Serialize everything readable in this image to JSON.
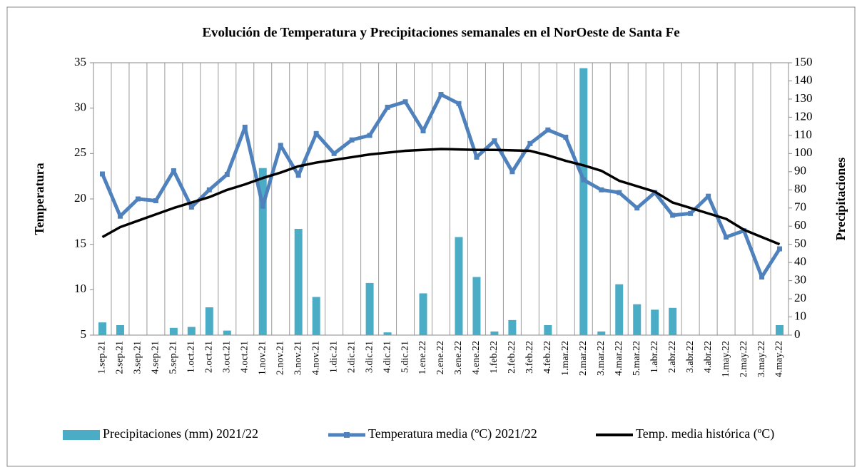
{
  "chart_data": {
    "type": "combo",
    "title": "Evolución de Temperatura y Precipitaciones semanales en el NorOeste de Santa Fe",
    "ylabel": "Temperatura",
    "y2label": "Precipitaciones",
    "categories": [
      "1.sep.21",
      "2.sep.21",
      "3.sep.21",
      "4.sep.21",
      "5.sep.21",
      "1.oct.21",
      "2.oct.21",
      "3.oct.21",
      "4.oct.21",
      "1.nov.21",
      "2.nov.21",
      "3.nov.21",
      "4.nov.21",
      "1.dic.21",
      "2.dic.21",
      "3.dic.21",
      "4.dic.21",
      "5.dic.21",
      "1.ene.22",
      "2.ene.22",
      "3.ene.22",
      "4.ene.22",
      "1.feb.22",
      "2.feb.22",
      "3.feb.22",
      "4.feb.22",
      "1.mar.22",
      "2.mar.22",
      "3.mar.22",
      "4.mar.22",
      "5.mar.22",
      "1.abr.22",
      "2.abr.22",
      "3.abr.22",
      "4.abr.22",
      "1.may.22",
      "2.may.22",
      "3.may.22",
      "4.may.22"
    ],
    "series": [
      {
        "name": "Precipitaciones (mm) 2021/22",
        "type": "bar",
        "axis": "y2",
        "color": "#4bacc6",
        "values": [
          7,
          5.5,
          0,
          0,
          4,
          4.5,
          15.3,
          2.5,
          0,
          92,
          0,
          58.5,
          21,
          0,
          0,
          28.7,
          1.5,
          0,
          23,
          0,
          54,
          32,
          2,
          8.3,
          0,
          5.5,
          0,
          147,
          2,
          28,
          17,
          14,
          15,
          0,
          0,
          0,
          0,
          0,
          5.5
        ]
      },
      {
        "name": "Temperatura media (ºC) 2021/22",
        "type": "line",
        "marker": true,
        "color": "#4f81bd",
        "values": [
          22.75,
          18.1,
          20,
          19.8,
          23.1,
          19.1,
          21,
          22.7,
          27.9,
          19.2,
          25.9,
          22.6,
          27.2,
          25,
          26.5,
          27,
          30.1,
          30.7,
          27.5,
          31.5,
          30.5,
          24.6,
          26.4,
          23,
          26.1,
          27.6,
          26.8,
          22.1,
          21,
          20.7,
          19,
          20.7,
          18.2,
          18.4,
          20.3,
          15.8,
          16.5,
          11.4,
          14.5
        ]
      },
      {
        "name": "Temp. media histórica (ºC)",
        "type": "line",
        "marker": false,
        "color": "#000000",
        "values": [
          15.8,
          16.9,
          17.6,
          18.3,
          19,
          19.6,
          20.2,
          21,
          21.6,
          22.3,
          22.9,
          23.6,
          24,
          24.3,
          24.6,
          24.9,
          25.1,
          25.3,
          25.4,
          25.5,
          25.45,
          25.4,
          25.4,
          25.35,
          25.3,
          24.8,
          24.2,
          23.7,
          23.1,
          22,
          21.4,
          20.8,
          19.6,
          19,
          18.4,
          17.8,
          16.6,
          15.8,
          15
        ]
      }
    ],
    "ylim": [
      5,
      35
    ],
    "yticks": [
      5,
      10,
      15,
      20,
      25,
      30,
      35
    ],
    "y2lim": [
      0,
      150
    ],
    "y2ticks": [
      0,
      10,
      20,
      30,
      40,
      50,
      60,
      70,
      80,
      90,
      100,
      110,
      120,
      130,
      140,
      150
    ],
    "grid": true,
    "legend": "bottom"
  }
}
